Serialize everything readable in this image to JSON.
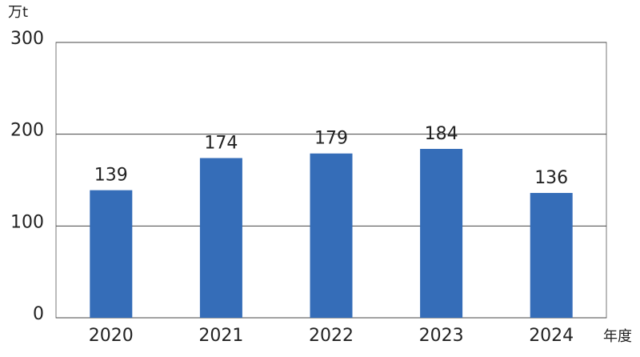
{
  "chart_data": {
    "type": "bar",
    "y_unit": "万t",
    "x_label": "年度",
    "categories": [
      "2020",
      "2021",
      "2022",
      "2023",
      "2024"
    ],
    "values": [
      139,
      174,
      179,
      184,
      136
    ],
    "color": "#356db8",
    "ylim": [
      0,
      300
    ],
    "yticks": [
      0,
      100,
      200,
      300
    ],
    "grid": true
  }
}
